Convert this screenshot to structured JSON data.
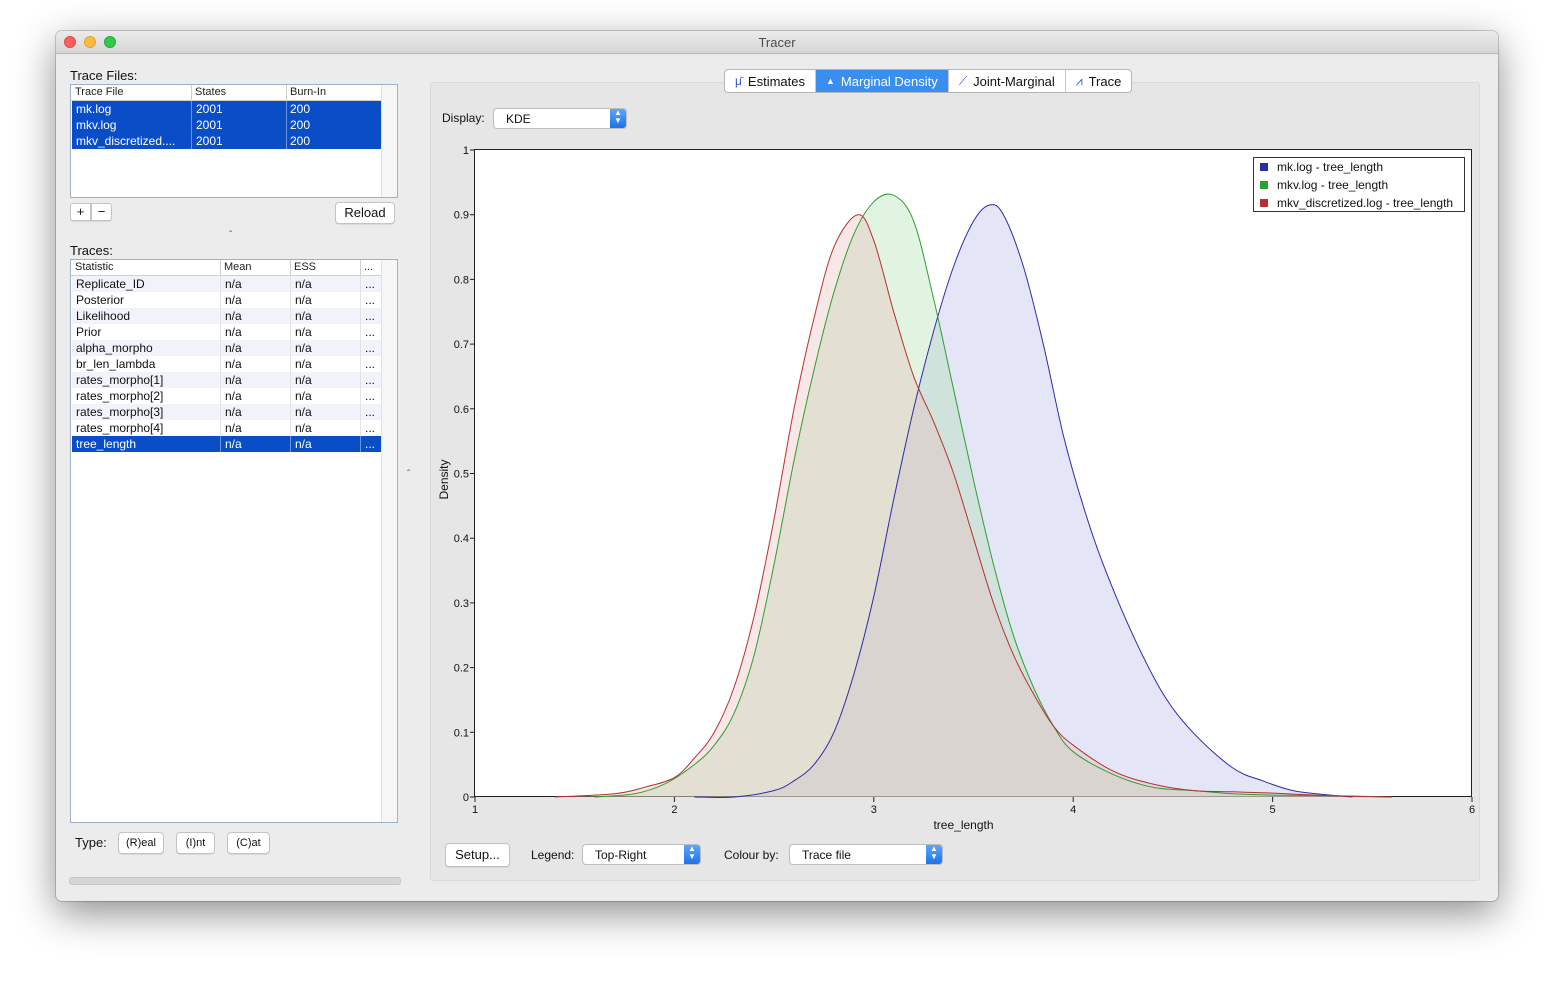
{
  "window": {
    "title": "Tracer"
  },
  "trace_files": {
    "label": "Trace Files:",
    "columns": [
      "Trace File",
      "States",
      "Burn-In"
    ],
    "rows": [
      {
        "file": "mk.log",
        "states": "2001",
        "burnin": "200"
      },
      {
        "file": "mkv.log",
        "states": "2001",
        "burnin": "200"
      },
      {
        "file": "mkv_discretized....",
        "states": "2001",
        "burnin": "200"
      }
    ],
    "add_label": "+",
    "remove_label": "−",
    "reload_label": "Reload"
  },
  "traces": {
    "label": "Traces:",
    "columns": [
      "Statistic",
      "Mean",
      "ESS",
      "..."
    ],
    "rows": [
      {
        "stat": "Replicate_ID",
        "mean": "n/a",
        "ess": "n/a",
        "more": "..."
      },
      {
        "stat": "Posterior",
        "mean": "n/a",
        "ess": "n/a",
        "more": "..."
      },
      {
        "stat": "Likelihood",
        "mean": "n/a",
        "ess": "n/a",
        "more": "..."
      },
      {
        "stat": "Prior",
        "mean": "n/a",
        "ess": "n/a",
        "more": "..."
      },
      {
        "stat": "alpha_morpho",
        "mean": "n/a",
        "ess": "n/a",
        "more": "..."
      },
      {
        "stat": "br_len_lambda",
        "mean": "n/a",
        "ess": "n/a",
        "more": "..."
      },
      {
        "stat": "rates_morpho[1]",
        "mean": "n/a",
        "ess": "n/a",
        "more": "..."
      },
      {
        "stat": "rates_morpho[2]",
        "mean": "n/a",
        "ess": "n/a",
        "more": "..."
      },
      {
        "stat": "rates_morpho[3]",
        "mean": "n/a",
        "ess": "n/a",
        "more": "..."
      },
      {
        "stat": "rates_morpho[4]",
        "mean": "n/a",
        "ess": "n/a",
        "more": "..."
      },
      {
        "stat": "tree_length",
        "mean": "n/a",
        "ess": "n/a",
        "more": "..."
      }
    ],
    "selected_row": 10
  },
  "type": {
    "label": "Type:",
    "real": "(R)eal",
    "int": "(I)nt",
    "cat": "(C)at"
  },
  "tabs": [
    {
      "label": "Estimates",
      "icon": "mu-bar-icon",
      "glyph": "μ̄"
    },
    {
      "label": "Marginal Density",
      "icon": "density-icon",
      "glyph": "▲",
      "active": true
    },
    {
      "label": "Joint-Marginal",
      "icon": "scatter-icon",
      "glyph": "⟋"
    },
    {
      "label": "Trace",
      "icon": "trace-icon",
      "glyph": "⩘"
    }
  ],
  "display": {
    "label": "Display:",
    "value": "KDE"
  },
  "bottom_controls": {
    "setup_label": "Setup...",
    "legend_label": "Legend:",
    "legend_value": "Top-Right",
    "colour_label": "Colour by:",
    "colour_value": "Trace file"
  },
  "colors": {
    "accent": "#3a8ef0",
    "selection": "#0a4ec7"
  },
  "chart_data": {
    "type": "area",
    "xlabel": "tree_length",
    "ylabel": "Density",
    "xlim": [
      1,
      6
    ],
    "ylim": [
      0,
      1
    ],
    "xticks": [
      1,
      2,
      3,
      4,
      5,
      6
    ],
    "yticks": [
      0,
      0.1,
      0.2,
      0.3,
      0.4,
      0.5,
      0.6,
      0.7,
      0.8,
      0.9,
      1
    ],
    "legend_position": "top-right",
    "series": [
      {
        "name": "mk.log - tree_length",
        "color": "#2c2ca8",
        "fill": "rgba(180,180,235,0.35)",
        "x": [
          2.1,
          2.3,
          2.5,
          2.6,
          2.7,
          2.8,
          2.9,
          3.0,
          3.1,
          3.2,
          3.3,
          3.4,
          3.5,
          3.58,
          3.65,
          3.75,
          3.85,
          3.95,
          4.05,
          4.15,
          4.3,
          4.45,
          4.6,
          4.8,
          4.95,
          5.1,
          5.25,
          5.4
        ],
        "y": [
          0,
          0.0,
          0.01,
          0.025,
          0.05,
          0.1,
          0.19,
          0.31,
          0.46,
          0.6,
          0.72,
          0.82,
          0.89,
          0.915,
          0.9,
          0.82,
          0.7,
          0.56,
          0.45,
          0.36,
          0.25,
          0.16,
          0.1,
          0.045,
          0.025,
          0.01,
          0.004,
          0
        ]
      },
      {
        "name": "mkv.log - tree_length",
        "color": "#2e9e2e",
        "fill": "rgba(170,220,170,0.35)",
        "x": [
          1.6,
          1.8,
          1.95,
          2.1,
          2.2,
          2.3,
          2.4,
          2.5,
          2.6,
          2.7,
          2.8,
          2.9,
          3.0,
          3.1,
          3.2,
          3.3,
          3.4,
          3.5,
          3.6,
          3.7,
          3.8,
          3.9,
          4.0,
          4.2,
          4.4,
          4.6,
          4.8,
          5.0,
          5.3,
          5.6
        ],
        "y": [
          0,
          0.005,
          0.02,
          0.05,
          0.08,
          0.13,
          0.22,
          0.36,
          0.52,
          0.66,
          0.78,
          0.87,
          0.92,
          0.93,
          0.89,
          0.77,
          0.63,
          0.49,
          0.36,
          0.25,
          0.17,
          0.11,
          0.07,
          0.035,
          0.015,
          0.01,
          0.005,
          0.003,
          0.002,
          0
        ]
      },
      {
        "name": "mkv_discretized.log - tree_length",
        "color": "#b53030",
        "fill": "rgba(235,185,185,0.35)",
        "x": [
          1.4,
          1.7,
          1.85,
          2.0,
          2.1,
          2.2,
          2.3,
          2.4,
          2.5,
          2.6,
          2.7,
          2.8,
          2.92,
          3.0,
          3.1,
          3.2,
          3.3,
          3.4,
          3.5,
          3.6,
          3.7,
          3.8,
          3.9,
          4.0,
          4.2,
          4.4,
          4.6,
          4.8,
          5.0,
          5.3,
          5.6
        ],
        "y": [
          0,
          0.005,
          0.015,
          0.03,
          0.06,
          0.1,
          0.17,
          0.28,
          0.43,
          0.6,
          0.74,
          0.85,
          0.9,
          0.86,
          0.75,
          0.65,
          0.58,
          0.5,
          0.4,
          0.3,
          0.22,
          0.16,
          0.11,
          0.08,
          0.04,
          0.02,
          0.01,
          0.008,
          0.006,
          0.002,
          0
        ]
      }
    ]
  }
}
